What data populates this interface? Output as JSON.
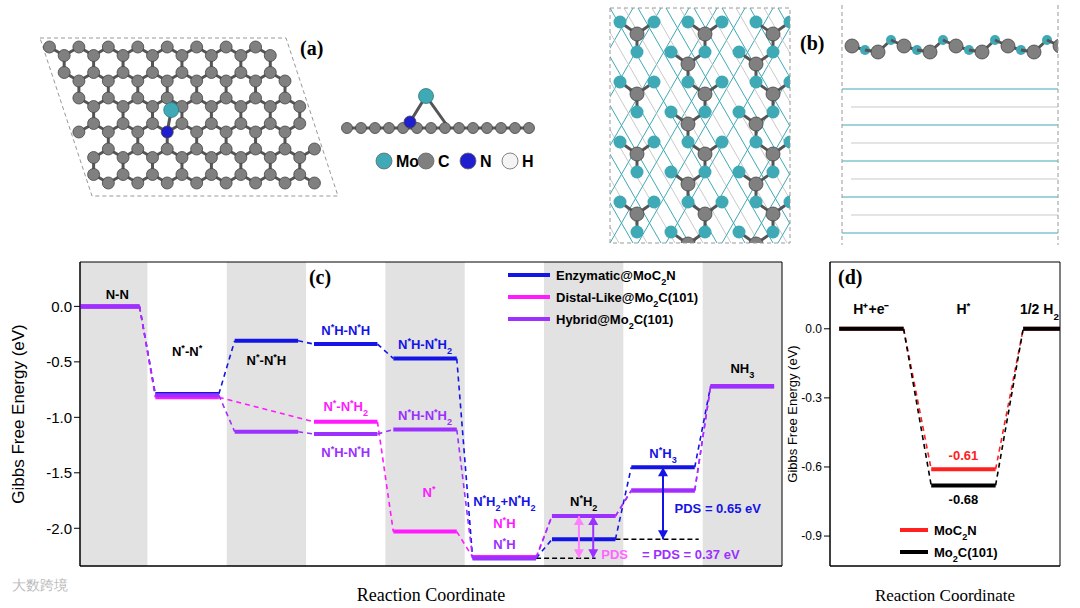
{
  "panels": [
    {
      "label": "(a)",
      "legend": [
        {
          "text": "Mo",
          "color": "#3fa9b5"
        },
        {
          "text": "C",
          "color": "#808080"
        },
        {
          "text": "N",
          "color": "#1f1fd0"
        },
        {
          "text": "H",
          "color": "#f4f4f4"
        }
      ]
    },
    {
      "label": "(b)"
    }
  ],
  "chart_data": [
    {
      "type": "line",
      "title": "(c)",
      "y_label": "Gibbs Free Energy (eV)",
      "x_label": "Reaction Coordinate",
      "x": [
        0,
        1,
        2,
        3,
        4,
        5,
        6,
        7,
        8
      ],
      "xlim": [
        -0.35,
        8.5
      ],
      "ylim": [
        -2.34,
        0.4
      ],
      "yticks": [
        {
          "value": 0,
          "label": "0.0"
        },
        -0.5,
        {
          "value": -1,
          "label": "-1.0"
        },
        -1.5,
        {
          "value": -2,
          "label": "-2.0"
        }
      ],
      "tick_labels": "y",
      "legend": "upper right",
      "series": [
        {
          "name": "Enzymatic@MoC2N",
          "color": "#1414e6",
          "values": [
            0,
            -0.79,
            -0.31,
            -0.34,
            -0.47,
            -2.27,
            -2.1,
            -1.45,
            -0.72
          ]
        },
        {
          "name": "Distal-Like@Mo2C(101)",
          "color": "#ff1aff",
          "values": [
            0,
            -0.82,
            null,
            -1.04,
            -2.03,
            -2.26,
            -1.89,
            -1.66,
            -0.72
          ]
        },
        {
          "name": "Hybrid@Mo2C(101)",
          "color": "#9b30ff",
          "values": [
            0,
            -0.8,
            -1.13,
            -1.15,
            -1.11,
            -2.27,
            -1.89,
            -1.66,
            -0.72
          ]
        }
      ],
      "annotations": [
        {
          "text": "N-N",
          "x": 0.12,
          "y": 0.07,
          "color": "#000000"
        },
        {
          "text": "N*-N*",
          "x": 1,
          "y": -0.45,
          "color": "#000000"
        },
        {
          "text": "N*-N*H",
          "x": 2,
          "y": -0.53,
          "color": "#000000"
        },
        {
          "text": "N*H-N*H",
          "x": 3,
          "y": -0.26,
          "color": "#1414e6"
        },
        {
          "text": "N*H-N*H2",
          "x": 4,
          "y": -0.38,
          "color": "#1414e6"
        },
        {
          "text": "N*-N*H2",
          "x": 3,
          "y": -0.94,
          "color": "#ff1aff"
        },
        {
          "text": "N*H-N*H2",
          "x": 4,
          "y": -1.02,
          "color": "#9b30ff"
        },
        {
          "text": "N*H-N*H",
          "x": 3,
          "y": -1.36,
          "color": "#9b30ff"
        },
        {
          "text": "N*",
          "x": 4.05,
          "y": -1.72,
          "color": "#ff1aff"
        },
        {
          "text": "N*H2+N*H2",
          "x": 5,
          "y": -1.8,
          "color": "#1414e6"
        },
        {
          "text": "N*H",
          "x": 5,
          "y": -2.0,
          "color": "#ff1aff"
        },
        {
          "text": "N*H",
          "x": 5,
          "y": -2.19,
          "color": "#9b30ff"
        },
        {
          "text": "N*H2",
          "x": 6,
          "y": -1.8,
          "color": "#000000"
        },
        {
          "text": "N*H3",
          "x": 7,
          "y": -1.37,
          "color": "#1414e6"
        },
        {
          "text": "NH3",
          "x": 8,
          "y": -0.6,
          "color": "#000000"
        },
        {
          "text": "PDS = 0.65 eV",
          "x": 7.69,
          "y": -1.86,
          "color": "#1414e6"
        },
        {
          "text": "PDS",
          "x": 6.39,
          "y": -2.28,
          "color": "#ff66ff"
        },
        {
          "text": "= PDS = 0.37 eV",
          "x": 7.35,
          "y": -2.28,
          "color": "#9b30ff"
        }
      ],
      "arrows": [
        {
          "x": 7.0,
          "from": -2.1,
          "to": -1.45,
          "color": "#1414e6"
        },
        {
          "x": 5.94,
          "from": -2.27,
          "to": -1.89,
          "color": "#ff80ff"
        },
        {
          "x": 6.12,
          "from": -2.27,
          "to": -1.89,
          "color": "#9b30ff"
        }
      ],
      "reference_lines": [
        {
          "y": -2.27,
          "x": [
            5.4,
            6.15
          ]
        },
        {
          "y": -2.1,
          "x": [
            6.4,
            7.45
          ]
        }
      ]
    },
    {
      "type": "line",
      "title": "(d)",
      "y_label": "Gibbs Free Energy (eV)",
      "x_label": "Reaction Coordinate",
      "categories": [
        "H⁺+e⁻",
        "H*",
        "1/2 H2"
      ],
      "xlim": [
        -0.45,
        2.05
      ],
      "ylim": [
        -1.03,
        0.29
      ],
      "yticks": [
        {
          "value": 0,
          "label": "0.0"
        },
        -0.3,
        -0.6,
        -0.9
      ],
      "tick_labels": "y",
      "legend": "lower right",
      "series": [
        {
          "name": "MoC2N",
          "color": "#ff2020",
          "values": [
            0,
            -0.61,
            0
          ],
          "value_labels": [
            null,
            "-0.61",
            null
          ]
        },
        {
          "name": "Mo2C(101)",
          "color": "#000000",
          "values": [
            0,
            -0.68,
            0
          ],
          "value_labels": [
            null,
            "-0.68",
            null
          ]
        }
      ]
    }
  ],
  "watermark": "大数跨境"
}
